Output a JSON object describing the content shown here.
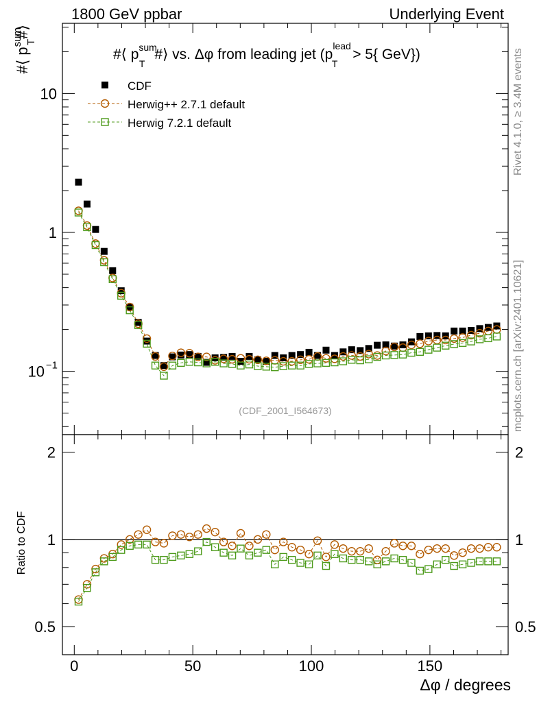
{
  "header": {
    "left": "1800 GeV ppbar",
    "right": "Underlying Event"
  },
  "side_labels": {
    "rivet": "Rivet 4.1.0, ≥ 3.4M events",
    "mcplots": "mcplots.cern.ch [arXiv:2401.10621]"
  },
  "chart_data": {
    "type": "scatter",
    "title": "#⟨ p_T^sum #⟩ vs. Δφ from leading jet (p_T^lead > 5{ GeV})",
    "title_parts": {
      "p1": "#⟨ p",
      "sup1": "sum",
      "sub1": "T",
      "p2": "#⟩ vs. Δφ from leading jet  (p",
      "sup2": "lead",
      "sub2": "T",
      "p3": " > 5{ GeV})"
    },
    "watermark": "(CDF_2001_I564673)",
    "xlabel": "Δφ / degrees",
    "ylabel_parts": {
      "p1": "#⟨ p",
      "sup": "sum",
      "sub": "T",
      "p2": "#⟩"
    },
    "ratio_ylabel": "Ratio to CDF",
    "xlim": [
      -5,
      183
    ],
    "ylim": [
      0.035,
      32
    ],
    "ratio_ylim": [
      0.4,
      2.3
    ],
    "x_ticks": [
      0,
      50,
      100,
      150
    ],
    "y_ticks": [
      {
        "value": 0.1,
        "base": "10",
        "exp": "−1"
      },
      {
        "value": 1,
        "label": "1"
      },
      {
        "value": 10,
        "label": "10"
      }
    ],
    "ratio_ticks": [
      {
        "value": 0.5,
        "label": "0.5"
      },
      {
        "value": 1,
        "label": "1"
      },
      {
        "value": 2,
        "label": "2"
      }
    ],
    "x": [
      1.8,
      5.4,
      9.0,
      12.6,
      16.2,
      19.8,
      23.4,
      27.0,
      30.6,
      34.2,
      37.8,
      41.4,
      45.0,
      48.6,
      52.2,
      55.8,
      59.4,
      63.0,
      66.6,
      70.2,
      73.8,
      77.4,
      81.0,
      84.6,
      88.2,
      91.8,
      95.4,
      99.0,
      102.6,
      106.2,
      109.8,
      113.4,
      117.0,
      120.6,
      124.2,
      127.8,
      131.4,
      135.0,
      138.6,
      142.2,
      145.8,
      149.4,
      153.0,
      156.6,
      160.2,
      163.8,
      167.4,
      171.0,
      174.6,
      178.2
    ],
    "series": [
      {
        "name": "CDF",
        "marker": "filled-square",
        "color": "#000000",
        "values": [
          2.3,
          1.6,
          1.05,
          0.73,
          0.53,
          0.38,
          0.29,
          0.225,
          0.165,
          0.13,
          0.11,
          0.127,
          0.131,
          0.132,
          0.128,
          0.116,
          0.125,
          0.126,
          0.128,
          0.118,
          0.128,
          0.121,
          0.118,
          0.13,
          0.125,
          0.13,
          0.132,
          0.137,
          0.13,
          0.142,
          0.13,
          0.138,
          0.143,
          0.141,
          0.146,
          0.154,
          0.155,
          0.152,
          0.155,
          0.163,
          0.178,
          0.18,
          0.181,
          0.18,
          0.195,
          0.195,
          0.197,
          0.203,
          0.207,
          0.212
        ]
      },
      {
        "name": "Herwig++ 2.7.1 default",
        "marker": "open-circle",
        "color": "#b35b00",
        "values": [
          1.43,
          1.12,
          0.83,
          0.63,
          0.47,
          0.365,
          0.29,
          0.22,
          0.172,
          0.128,
          0.108,
          0.129,
          0.136,
          0.135,
          0.127,
          0.127,
          0.12,
          0.123,
          0.122,
          0.124,
          0.122,
          0.121,
          0.119,
          0.12,
          0.118,
          0.118,
          0.121,
          0.122,
          0.128,
          0.124,
          0.123,
          0.128,
          0.13,
          0.128,
          0.133,
          0.13,
          0.14,
          0.15,
          0.148,
          0.155,
          0.158,
          0.165,
          0.168,
          0.168,
          0.172,
          0.175,
          0.182,
          0.188,
          0.195,
          0.2
        ]
      },
      {
        "name": "Herwig 7.2.1 default",
        "marker": "open-square",
        "color": "#4c9a1a",
        "values": [
          1.39,
          1.09,
          0.81,
          0.61,
          0.46,
          0.35,
          0.275,
          0.215,
          0.158,
          0.11,
          0.093,
          0.11,
          0.115,
          0.117,
          0.116,
          0.114,
          0.117,
          0.114,
          0.113,
          0.11,
          0.112,
          0.109,
          0.108,
          0.107,
          0.109,
          0.11,
          0.11,
          0.113,
          0.114,
          0.115,
          0.116,
          0.118,
          0.121,
          0.12,
          0.122,
          0.127,
          0.13,
          0.131,
          0.132,
          0.136,
          0.138,
          0.143,
          0.148,
          0.153,
          0.157,
          0.16,
          0.164,
          0.17,
          0.173,
          0.178
        ]
      }
    ],
    "ratio_series": [
      {
        "name": "Herwig++ 2.7.1 default",
        "values": [
          0.62,
          0.7,
          0.79,
          0.86,
          0.89,
          0.96,
          1.0,
          1.04,
          1.08,
          0.98,
          0.97,
          1.03,
          1.04,
          1.02,
          1.04,
          1.09,
          1.06,
          0.98,
          0.95,
          1.05,
          0.95,
          1.0,
          1.04,
          0.92,
          0.98,
          0.94,
          0.92,
          0.89,
          0.99,
          0.87,
          0.96,
          0.93,
          0.91,
          0.91,
          0.93,
          0.85,
          0.91,
          0.97,
          0.95,
          0.95,
          0.89,
          0.92,
          0.93,
          0.93,
          0.88,
          0.9,
          0.93,
          0.93,
          0.94,
          0.94
        ]
      },
      {
        "name": "Herwig 7.2.1 default",
        "values": [
          0.61,
          0.68,
          0.77,
          0.84,
          0.87,
          0.92,
          0.95,
          0.96,
          0.96,
          0.85,
          0.85,
          0.87,
          0.88,
          0.89,
          0.91,
          0.98,
          0.94,
          0.9,
          0.88,
          0.93,
          0.88,
          0.9,
          0.92,
          0.82,
          0.87,
          0.85,
          0.83,
          0.82,
          0.88,
          0.81,
          0.89,
          0.86,
          0.85,
          0.85,
          0.84,
          0.82,
          0.84,
          0.86,
          0.85,
          0.83,
          0.78,
          0.79,
          0.82,
          0.85,
          0.81,
          0.82,
          0.83,
          0.84,
          0.84,
          0.84
        ]
      }
    ]
  }
}
